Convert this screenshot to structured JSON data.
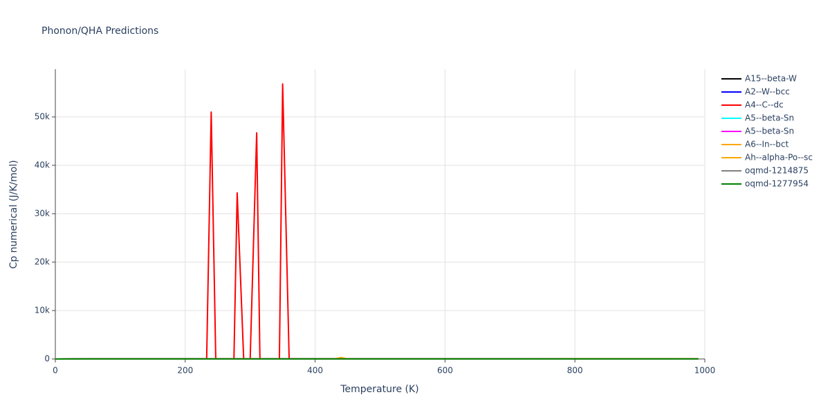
{
  "chart_data": {
    "type": "line",
    "title": "Phonon/QHA Predictions",
    "x_label": "Temperature (K)",
    "y_label": "Cp numerical (J/K/mol)",
    "xlim": [
      0,
      1000
    ],
    "ylim": [
      0,
      59860
    ],
    "xticks": [
      0,
      200,
      400,
      600,
      800,
      1000
    ],
    "yticks": [
      0,
      {
        "value": 10000,
        "label": "10k"
      },
      {
        "value": 20000,
        "label": "20k"
      },
      {
        "value": 30000,
        "label": "30k"
      },
      {
        "value": 40000,
        "label": "40k"
      },
      {
        "value": 50000,
        "label": "50k"
      }
    ],
    "grid": true,
    "legend": "right",
    "series": [
      {
        "name": "A15--beta-W",
        "color": "#000000",
        "x": [
          0,
          50,
          100,
          200,
          400,
          600,
          800,
          990
        ],
        "values": [
          0,
          20,
          23,
          24,
          25,
          25,
          25,
          25
        ]
      },
      {
        "name": "A2--W--bcc",
        "color": "#0000ff",
        "x": [
          0,
          50,
          100,
          200,
          400,
          600,
          800,
          990
        ],
        "values": [
          0,
          21,
          24,
          25,
          25,
          26,
          26,
          26
        ]
      },
      {
        "name": "A4--C--dc",
        "color": "#ff0000",
        "x": [
          0,
          100,
          200,
          233,
          240,
          247,
          275,
          280,
          290,
          300,
          310,
          315,
          345,
          350,
          360,
          400,
          600,
          800,
          990
        ],
        "values": [
          0,
          24,
          24,
          24,
          51000,
          24,
          24,
          34300,
          24,
          24,
          46700,
          24,
          24,
          56800,
          24,
          24,
          24,
          24,
          24
        ]
      },
      {
        "name": "A5--beta-Sn",
        "color": "#00ffff",
        "x": [
          0,
          50,
          100,
          200,
          400,
          600,
          800,
          990
        ],
        "values": [
          0,
          22,
          24,
          25,
          25,
          25,
          26,
          26
        ]
      },
      {
        "name": "A5--beta-Sn",
        "color": "#ff00ff",
        "x": [
          0,
          50,
          100,
          200,
          400,
          600,
          800,
          990
        ],
        "values": [
          0,
          22,
          24,
          25,
          25,
          26,
          26,
          26
        ]
      },
      {
        "name": "A6--In--bct",
        "color": "#ffa500",
        "x": [
          0,
          50,
          100,
          200,
          400,
          430,
          440,
          450,
          600,
          800,
          990
        ],
        "values": [
          0,
          23,
          25,
          25,
          26,
          26,
          300,
          26,
          26,
          27,
          27
        ]
      },
      {
        "name": "Ah--alpha-Po--sc",
        "color": "#ffa500",
        "x": [
          0,
          50,
          100,
          200,
          400,
          600,
          800,
          990
        ],
        "values": [
          0,
          23,
          25,
          25,
          26,
          26,
          26,
          27
        ]
      },
      {
        "name": "oqmd-1214875",
        "color": "#808080",
        "x": [
          0,
          50,
          100,
          200,
          400,
          600,
          800,
          990
        ],
        "values": [
          0,
          21,
          24,
          25,
          25,
          25,
          26,
          26
        ]
      },
      {
        "name": "oqmd-1277954",
        "color": "#008000",
        "x": [
          0,
          50,
          100,
          200,
          400,
          600,
          800,
          990
        ],
        "values": [
          0,
          22,
          24,
          25,
          25,
          26,
          26,
          26
        ]
      }
    ]
  }
}
